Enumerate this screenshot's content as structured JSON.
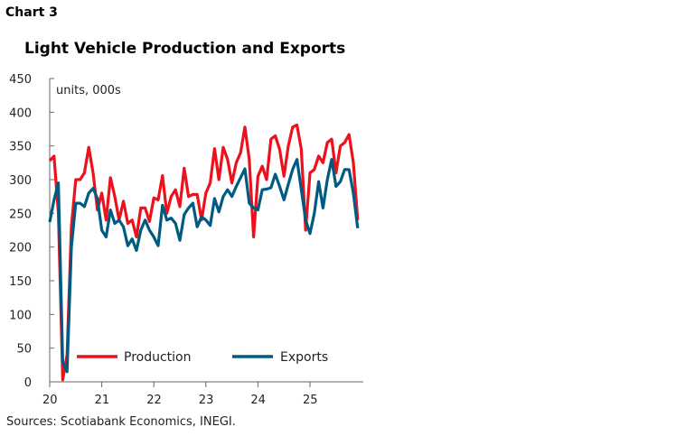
{
  "chart_label": "Chart 3",
  "chart_data": {
    "type": "line",
    "title": "Light Vehicle Production and Exports",
    "ylabel": "units, 000s",
    "xlabel": "",
    "ylim": [
      0,
      450
    ],
    "yticks": [
      0,
      50,
      100,
      150,
      200,
      250,
      300,
      350,
      400,
      450
    ],
    "xticks": [
      "20",
      "21",
      "22",
      "23",
      "24",
      "25"
    ],
    "frequency": "monthly",
    "x_start": "2020-01",
    "legend": "bottom-left",
    "grid": false,
    "series": [
      {
        "name": "Production",
        "color": "#ec111a",
        "values": [
          328,
          335,
          250,
          3,
          40,
          230,
          300,
          300,
          310,
          348,
          310,
          255,
          280,
          240,
          303,
          275,
          240,
          268,
          235,
          240,
          215,
          258,
          258,
          238,
          273,
          270,
          306,
          250,
          275,
          285,
          260,
          317,
          275,
          278,
          278,
          240,
          280,
          295,
          346,
          300,
          348,
          330,
          295,
          325,
          340,
          378,
          330,
          215,
          305,
          320,
          300,
          360,
          365,
          345,
          305,
          350,
          378,
          381,
          345,
          225,
          310,
          315,
          335,
          325,
          355,
          360,
          310,
          350,
          355,
          367,
          325,
          240
        ]
      },
      {
        "name": "Exports",
        "color": "#005b82",
        "values": [
          237,
          270,
          295,
          30,
          15,
          200,
          265,
          265,
          260,
          280,
          287,
          272,
          225,
          215,
          255,
          235,
          240,
          230,
          202,
          212,
          195,
          225,
          240,
          225,
          215,
          202,
          262,
          240,
          243,
          235,
          210,
          248,
          258,
          265,
          230,
          245,
          240,
          232,
          272,
          252,
          275,
          285,
          275,
          290,
          303,
          316,
          265,
          258,
          255,
          285,
          286,
          288,
          308,
          290,
          270,
          293,
          315,
          330,
          285,
          240,
          220,
          250,
          297,
          258,
          300,
          330,
          290,
          297,
          315,
          315,
          280,
          228
        ]
      }
    ]
  },
  "source": "Sources: Scotiabank Economics, INEGI."
}
